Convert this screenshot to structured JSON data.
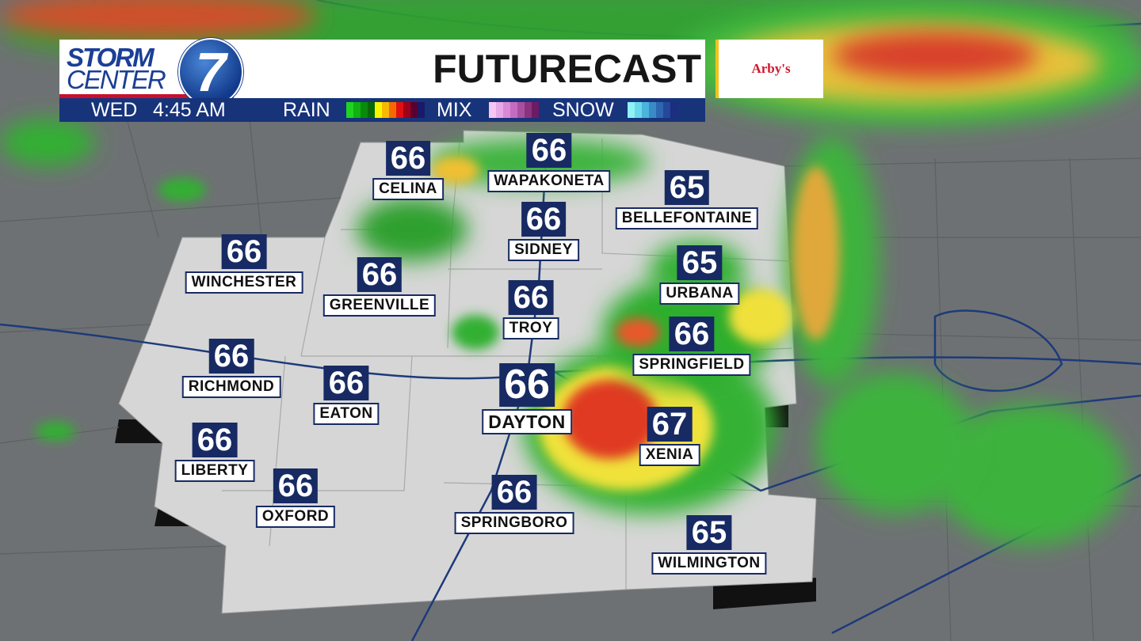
{
  "header": {
    "logo_line1": "STORM",
    "logo_line2": "CENTER",
    "logo_number": "7",
    "title": "FUTURECAST",
    "sponsor": "Arby's"
  },
  "timebar": {
    "day": "WED",
    "time": "4:45 AM",
    "legend": [
      {
        "label": "RAIN",
        "colors": [
          "#1fd41f",
          "#12b012",
          "#0a8a0a",
          "#066a06",
          "#f7f700",
          "#f7b800",
          "#f56a00",
          "#e01010",
          "#a0001a",
          "#5a0030",
          "#1a1a6a"
        ]
      },
      {
        "label": "MIX",
        "colors": [
          "#f7c6f3",
          "#e8a8e6",
          "#d88ad6",
          "#c46cc2",
          "#a8509e",
          "#8a3480",
          "#6e1a64"
        ]
      },
      {
        "label": "SNOW",
        "colors": [
          "#8ef2f7",
          "#6ad8ec",
          "#4ab4dc",
          "#3a8ac6",
          "#2e66b0",
          "#24489a",
          "#1c2e80"
        ]
      }
    ]
  },
  "cities": [
    {
      "name": "CELINA",
      "temp": "66"
    },
    {
      "name": "WAPAKONETA",
      "temp": "66"
    },
    {
      "name": "BELLEFONTAINE",
      "temp": "65"
    },
    {
      "name": "WINCHESTER",
      "temp": "66"
    },
    {
      "name": "GREENVILLE",
      "temp": "66"
    },
    {
      "name": "SIDNEY",
      "temp": "66"
    },
    {
      "name": "URBANA",
      "temp": "65"
    },
    {
      "name": "TROY",
      "temp": "66"
    },
    {
      "name": "SPRINGFIELD",
      "temp": "66"
    },
    {
      "name": "RICHMOND",
      "temp": "66"
    },
    {
      "name": "EATON",
      "temp": "66"
    },
    {
      "name": "DAYTON",
      "temp": "66"
    },
    {
      "name": "XENIA",
      "temp": "67"
    },
    {
      "name": "LIBERTY",
      "temp": "66"
    },
    {
      "name": "OXFORD",
      "temp": "66"
    },
    {
      "name": "SPRINGBORO",
      "temp": "66"
    },
    {
      "name": "WILMINGTON",
      "temp": "65"
    }
  ]
}
